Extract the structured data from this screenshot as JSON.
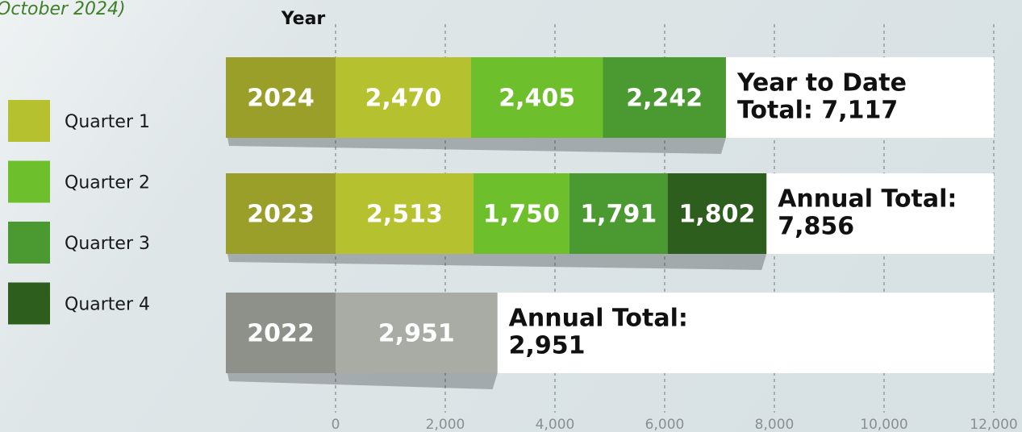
{
  "chart_data": {
    "type": "stacked_barh",
    "title": "October 2024)",
    "y_axis_label": "Year",
    "categories": [
      "2024",
      "2023",
      "2022"
    ],
    "category_colors": [
      "#9a9f2a",
      "#9a9f2a",
      "#8e9189"
    ],
    "series": [
      {
        "name": "Quarter 1",
        "color": "#b6c12f",
        "point_colors": [
          "#b6c12f",
          "#b6c12f",
          "#a9aca4"
        ],
        "values": [
          2470,
          2513,
          2951
        ],
        "value_labels": [
          "2,470",
          "2,513",
          "2,951"
        ]
      },
      {
        "name": "Quarter 2",
        "color": "#6dbf2b",
        "values": [
          2405,
          1750,
          null
        ],
        "value_labels": [
          "2,405",
          "1,750",
          null
        ]
      },
      {
        "name": "Quarter 3",
        "color": "#4a9a31",
        "values": [
          2242,
          1791,
          null
        ],
        "value_labels": [
          "2,242",
          "1,791",
          null
        ]
      },
      {
        "name": "Quarter 4",
        "color": "#2e5e1d",
        "values": [
          null,
          1802,
          null
        ],
        "value_labels": [
          null,
          "1,802",
          null
        ]
      }
    ],
    "total_labels": [
      [
        "Year to Date",
        "Total: 7,117"
      ],
      [
        "Annual Total:",
        "7,856"
      ],
      [
        "Annual Total:",
        "2,951"
      ]
    ],
    "xlim": [
      0,
      12000
    ],
    "xticks": [
      0,
      {
        "value": 2000,
        "label": "2,000"
      },
      {
        "value": 4000,
        "label": "4,000"
      },
      {
        "value": 6000,
        "label": "6,000"
      },
      {
        "value": 8000,
        "label": "8,000"
      },
      {
        "value": 10000,
        "label": "10,000"
      },
      {
        "value": 12000,
        "label": "12,000"
      }
    ],
    "grid": true
  }
}
